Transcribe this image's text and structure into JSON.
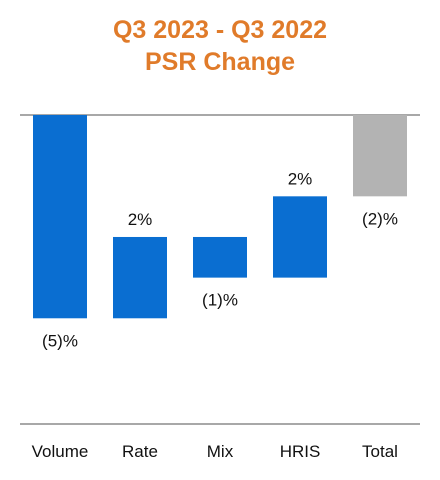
{
  "chart_data": {
    "type": "waterfall",
    "title": [
      "Q3 2023 - Q3 2022",
      "PSR Change"
    ],
    "categories": [
      "Volume",
      "Rate",
      "Mix",
      "HRIS",
      "Total"
    ],
    "values": [
      -5,
      2,
      -1,
      2,
      -2
    ],
    "data_labels": [
      "(5)%",
      "2%",
      "(1)%",
      "2%",
      "(2)%"
    ],
    "ylim": [
      -7.6,
      0
    ],
    "colors": {
      "increment": "#0A6ED1",
      "total": "#B3B3B3",
      "title": "#E07B2A"
    }
  }
}
